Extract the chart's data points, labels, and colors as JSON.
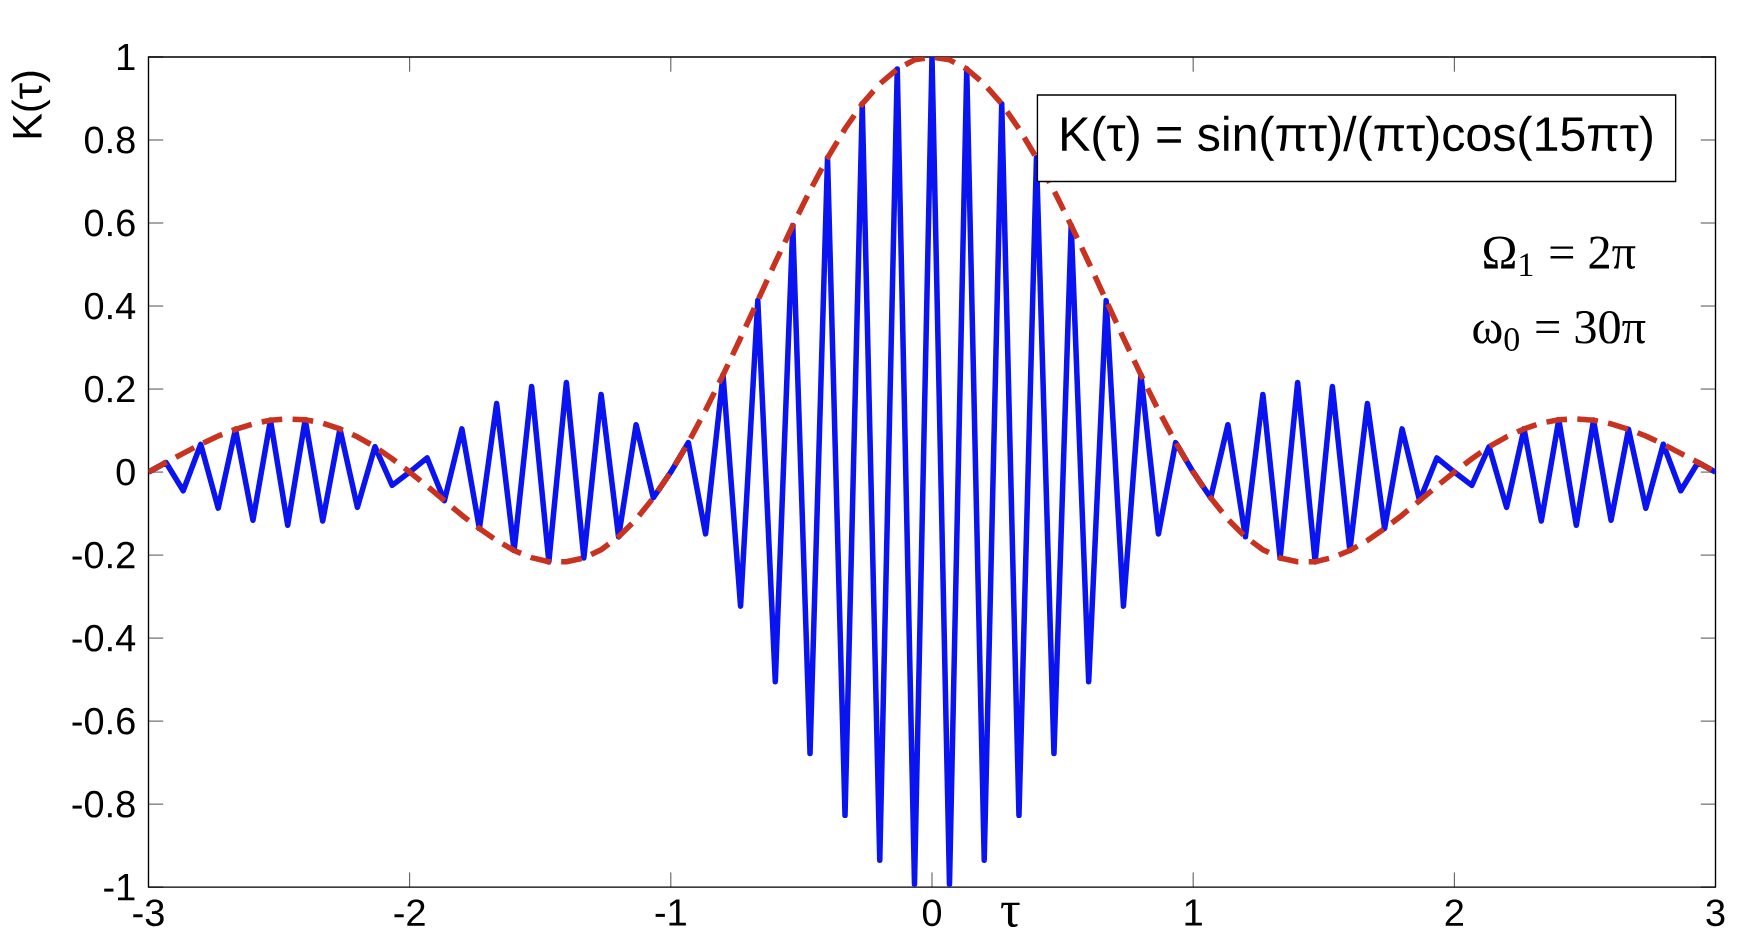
{
  "chart_data": {
    "type": "line",
    "xlabel": "τ",
    "ylabel": "K(τ)",
    "annotations": [
      "K(τ) = sin(πτ)/(πτ)cos(15πτ)",
      "Ω$_{1}$ = 2π",
      "ω$_{0}$ = 30π"
    ],
    "xlim": [
      -3,
      3
    ],
    "ylim": [
      -1,
      1
    ],
    "xticks": [
      -3,
      -2,
      -1,
      0,
      1,
      2,
      3
    ],
    "yticks": [
      -1,
      -0.8,
      -0.6,
      -0.4,
      -0.2,
      0,
      0.2,
      0.4,
      0.6,
      0.8,
      1
    ],
    "grid": false,
    "marker": "none",
    "x": [
      -3,
      -2.933,
      -2.867,
      -2.8,
      -2.733,
      -2.667,
      -2.6,
      -2.533,
      -2.467,
      -2.4,
      -2.333,
      -2.267,
      -2.2,
      -2.133,
      -2.067,
      -2,
      -1.933,
      -1.867,
      -1.8,
      -1.733,
      -1.667,
      -1.6,
      -1.533,
      -1.467,
      -1.4,
      -1.333,
      -1.267,
      -1.2,
      -1.133,
      -1.067,
      -1,
      -0.933,
      -0.867,
      -0.8,
      -0.733,
      -0.667,
      -0.6,
      -0.533,
      -0.467,
      -0.4,
      -0.333,
      -0.267,
      -0.2,
      -0.133,
      -0.067,
      0,
      0.067,
      0.133,
      0.2,
      0.267,
      0.333,
      0.4,
      0.467,
      0.533,
      0.6,
      0.667,
      0.733,
      0.8,
      0.867,
      0.933,
      1,
      1.067,
      1.133,
      1.2,
      1.267,
      1.333,
      1.4,
      1.467,
      1.533,
      1.6,
      1.667,
      1.733,
      1.8,
      1.867,
      1.933,
      2,
      2.067,
      2.133,
      2.2,
      2.267,
      2.333,
      2.4,
      2.467,
      2.533,
      2.6,
      2.667,
      2.733,
      2.8,
      2.867,
      2.933,
      3
    ],
    "series": [
      {
        "color": "#0a14f0",
        "line_style": "solid",
        "values": [
          0,
          0.023,
          -0.045,
          0.067,
          -0.087,
          0.103,
          -0.116,
          0.125,
          -0.128,
          0.126,
          -0.118,
          0.104,
          -0.085,
          0.061,
          -0.032,
          0,
          0.034,
          -0.069,
          0.104,
          -0.136,
          0.165,
          -0.189,
          0.206,
          -0.216,
          0.216,
          -0.207,
          0.187,
          -0.156,
          0.114,
          -0.062,
          0,
          0.071,
          -0.149,
          0.234,
          -0.323,
          0.413,
          -0.505,
          0.594,
          -0.678,
          0.757,
          -0.827,
          0.887,
          -0.935,
          0.971,
          -0.993,
          1,
          -0.993,
          0.971,
          -0.935,
          0.887,
          -0.827,
          0.757,
          -0.678,
          0.594,
          -0.505,
          0.413,
          -0.323,
          0.234,
          -0.149,
          0.071,
          0,
          -0.062,
          0.114,
          -0.156,
          0.187,
          -0.207,
          0.216,
          -0.216,
          0.206,
          -0.189,
          0.165,
          -0.136,
          0.104,
          -0.069,
          0.034,
          0,
          -0.032,
          0.061,
          -0.085,
          0.104,
          -0.118,
          0.126,
          -0.128,
          0.125,
          -0.116,
          0.103,
          -0.087,
          0.067,
          -0.045,
          0.023,
          0
        ]
      },
      {
        "color": "#c8321e",
        "line_style": "dashed",
        "values": [
          0,
          0.023,
          0.045,
          0.067,
          0.087,
          0.103,
          0.116,
          0.125,
          0.128,
          0.126,
          0.118,
          0.104,
          0.085,
          0.061,
          0.032,
          0,
          -0.034,
          -0.069,
          -0.104,
          -0.136,
          -0.165,
          -0.189,
          -0.206,
          -0.216,
          -0.216,
          -0.207,
          -0.187,
          -0.156,
          -0.114,
          -0.062,
          0,
          0.071,
          0.149,
          0.234,
          0.323,
          0.413,
          0.505,
          0.594,
          0.678,
          0.757,
          0.827,
          0.887,
          0.935,
          0.971,
          0.993,
          1,
          0.993,
          0.971,
          0.935,
          0.887,
          0.827,
          0.757,
          0.678,
          0.594,
          0.505,
          0.413,
          0.323,
          0.234,
          0.149,
          0.071,
          0,
          -0.062,
          -0.114,
          -0.156,
          -0.187,
          -0.207,
          -0.216,
          -0.216,
          -0.206,
          -0.189,
          -0.165,
          -0.136,
          -0.104,
          -0.069,
          -0.034,
          0,
          0.032,
          0.061,
          0.085,
          0.104,
          0.118,
          0.126,
          0.128,
          0.125,
          0.116,
          0.103,
          0.087,
          0.067,
          0.045,
          0.023,
          0
        ]
      }
    ]
  }
}
